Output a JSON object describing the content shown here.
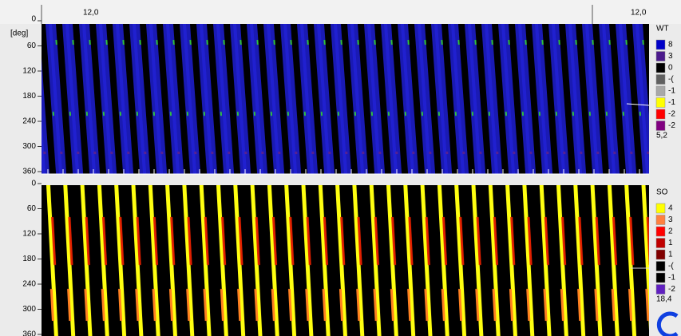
{
  "header": {
    "left_value": "12,0",
    "right_value": "12,0"
  },
  "panels": [
    {
      "y_unit": "[deg]",
      "y_labels": [
        "0",
        "60",
        "120",
        "180",
        "240",
        "300",
        "360"
      ],
      "legend": {
        "title": "WT",
        "items": [
          {
            "label": "8",
            "color": "#0000c8"
          },
          {
            "label": "3",
            "color": "#4b1a8c"
          },
          {
            "label": "0",
            "color": "#000000"
          },
          {
            "label": "-(",
            "color": "#606060"
          },
          {
            "label": "-1",
            "color": "#a8a8a8"
          },
          {
            "label": "-1",
            "color": "#ffff00"
          },
          {
            "label": "-2",
            "color": "#ff0000"
          },
          {
            "label": "-2",
            "color": "#800080"
          }
        ],
        "footer": "5,2"
      }
    },
    {
      "y_labels": [
        "0",
        "60",
        "120",
        "180",
        "240",
        "300",
        "360"
      ],
      "legend": {
        "title": "SO",
        "items": [
          {
            "label": "4",
            "color": "#ffff00"
          },
          {
            "label": "3",
            "color": "#ff8040"
          },
          {
            "label": "2",
            "color": "#ff0000"
          },
          {
            "label": "1",
            "color": "#c00000"
          },
          {
            "label": "1",
            "color": "#800000"
          },
          {
            "label": "-(",
            "color": "#000000"
          },
          {
            "label": "-1",
            "color": "#000000"
          },
          {
            "label": "-2",
            "color": "#6020c0"
          }
        ],
        "footer": "18,4"
      }
    }
  ]
}
